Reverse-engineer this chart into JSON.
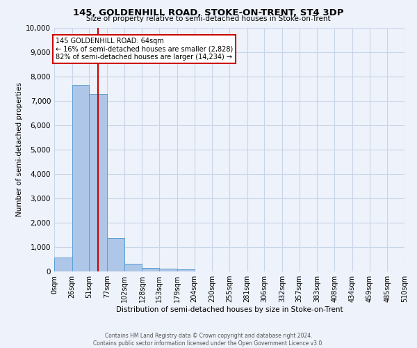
{
  "title": "145, GOLDENHILL ROAD, STOKE-ON-TRENT, ST4 3DP",
  "subtitle": "Size of property relative to semi-detached houses in Stoke-on-Trent",
  "xlabel": "Distribution of semi-detached houses by size in Stoke-on-Trent",
  "ylabel": "Number of semi-detached properties",
  "bar_color": "#aec6e8",
  "bar_edge_color": "#5a9fd4",
  "bin_edges": [
    0,
    26,
    51,
    77,
    102,
    128,
    153,
    179,
    204,
    230,
    255,
    281,
    306,
    332,
    357,
    383,
    408,
    434,
    459,
    485,
    510
  ],
  "bin_labels": [
    "0sqm",
    "26sqm",
    "51sqm",
    "77sqm",
    "102sqm",
    "128sqm",
    "153sqm",
    "179sqm",
    "204sqm",
    "230sqm",
    "255sqm",
    "281sqm",
    "306sqm",
    "332sqm",
    "357sqm",
    "383sqm",
    "408sqm",
    "434sqm",
    "459sqm",
    "485sqm",
    "510sqm"
  ],
  "counts": [
    560,
    7650,
    7280,
    1360,
    310,
    155,
    110,
    85,
    0,
    0,
    0,
    0,
    0,
    0,
    0,
    0,
    0,
    0,
    0,
    0
  ],
  "ylim": [
    0,
    10000
  ],
  "yticks": [
    0,
    1000,
    2000,
    3000,
    4000,
    5000,
    6000,
    7000,
    8000,
    9000,
    10000
  ],
  "vline_x": 64,
  "annotation_title": "145 GOLDENHILL ROAD: 64sqm",
  "annotation_line1": "← 16% of semi-detached houses are smaller (2,828)",
  "annotation_line2": "82% of semi-detached houses are larger (14,234) →",
  "annotation_box_color": "#ffffff",
  "annotation_box_edgecolor": "#cc0000",
  "vline_color": "#cc0000",
  "grid_color": "#c8d4e8",
  "background_color": "#eef2fa",
  "footer_line1": "Contains HM Land Registry data © Crown copyright and database right 2024.",
  "footer_line2": "Contains public sector information licensed under the Open Government Licence v3.0."
}
